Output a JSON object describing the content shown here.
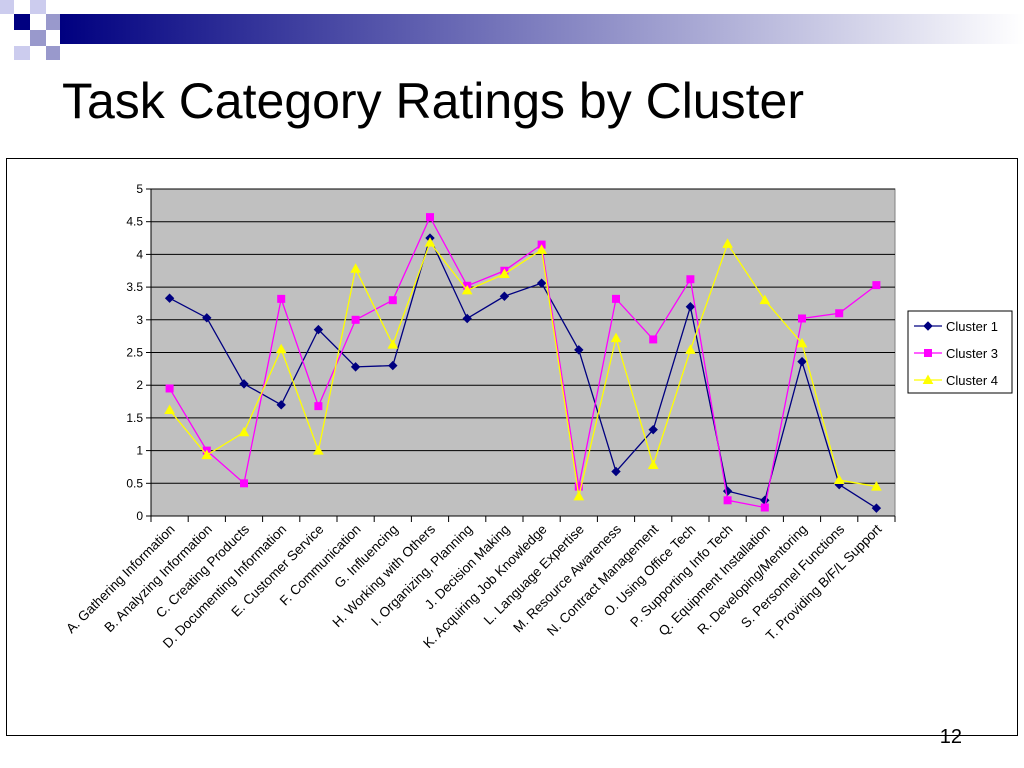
{
  "slide": {
    "title": "Task Category Ratings by Cluster",
    "page_number": "12"
  },
  "colors": {
    "plot_bg": "#c0c0c0",
    "deco_navy": "#000080",
    "deco_light": "#9999cc"
  },
  "chart_data": {
    "type": "line",
    "title": "",
    "xlabel": "",
    "ylabel": "",
    "ylim": [
      0,
      5
    ],
    "yticks": [
      "0",
      "0.5",
      "1",
      "1.5",
      "2",
      "2.5",
      "3",
      "3.5",
      "4",
      "4.5",
      "5"
    ],
    "grid": true,
    "legend_position": "right",
    "categories": [
      "A. Gathering Information",
      "B. Analyzing Information",
      "C. Creating Products",
      "D. Documenting Information",
      "E. Customer Service",
      "F. Communication",
      "G. Influencing",
      "H. Working with Others",
      "I. Organizing, Planning",
      "J. Decision Making",
      "K. Acquiring Job Knowledge",
      "L. Language Expertise",
      "M. Resource Awareness",
      "N. Contract Management",
      "O. Using Office Tech",
      "P. Supporting Info Tech",
      "Q. Equipment Installation",
      "R. Developing/Mentoring",
      "S. Personnel Functions",
      "T. Providing B/F/L Support"
    ],
    "series": [
      {
        "name": "Cluster 1",
        "color": "#000080",
        "marker": "diamond",
        "values": [
          3.33,
          3.03,
          2.02,
          1.7,
          2.85,
          2.28,
          2.3,
          4.25,
          3.02,
          3.36,
          3.56,
          2.54,
          0.68,
          1.32,
          3.2,
          0.38,
          0.24,
          2.36,
          0.48,
          0.12
        ]
      },
      {
        "name": "Cluster 3",
        "color": "#ff00ff",
        "marker": "square",
        "values": [
          1.95,
          1.0,
          0.5,
          3.32,
          1.68,
          3.0,
          3.3,
          4.57,
          3.52,
          3.75,
          4.15,
          0.45,
          3.32,
          2.7,
          3.62,
          0.24,
          0.13,
          3.02,
          3.1,
          3.53
        ]
      },
      {
        "name": "Cluster 4",
        "color": "#ffff00",
        "marker": "triangle",
        "values": [
          1.62,
          0.93,
          1.28,
          2.55,
          1.0,
          3.78,
          2.62,
          4.18,
          3.45,
          3.7,
          4.07,
          0.3,
          2.72,
          0.78,
          2.54,
          4.16,
          3.3,
          2.64,
          0.55,
          0.45
        ]
      }
    ]
  }
}
